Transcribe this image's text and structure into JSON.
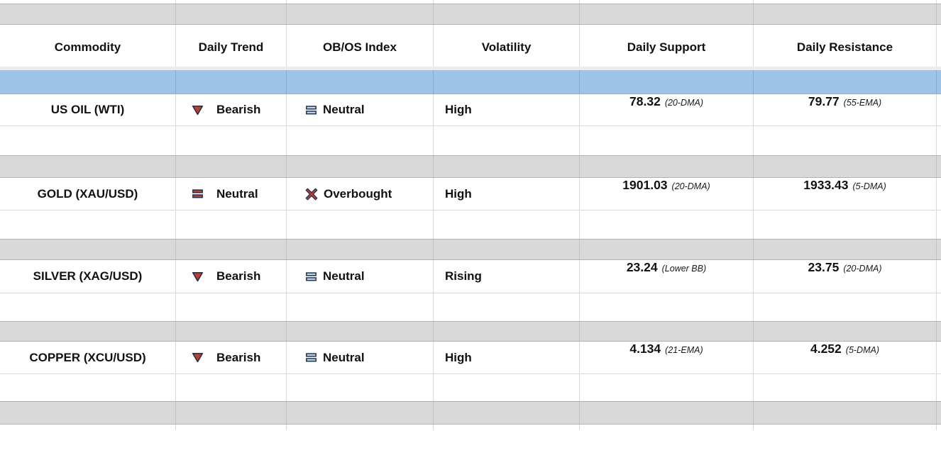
{
  "colors": {
    "band-gray": "#d9d9d9",
    "band-blue": "#9dc3e6",
    "grid-line": "#d9d9d9",
    "icon-red": "#c13e2c",
    "icon-lightblue": "#bdd7ee",
    "icon-outline": "#1f3050"
  },
  "table": {
    "columns": [
      {
        "label": "Commodity"
      },
      {
        "label": "Daily Trend"
      },
      {
        "label": "OB/OS Index"
      },
      {
        "label": "Volatility"
      },
      {
        "label": "Daily Support"
      },
      {
        "label": "Daily Resistance"
      }
    ],
    "rows": [
      {
        "commodity": "US OIL (WTI)",
        "daily_trend": {
          "label": "Bearish",
          "icon": "triangle-down",
          "icon_fill": "#c13e2c"
        },
        "obos_index": {
          "label": "Neutral",
          "icon": "double-bars",
          "icon_fill": "#bdd7ee"
        },
        "volatility": "High",
        "daily_support": {
          "value": "78.32",
          "basis": "(20-DMA)"
        },
        "daily_resistance": {
          "value": "79.77",
          "basis": "(55-EMA)"
        }
      },
      {
        "commodity": "GOLD (XAU/USD)",
        "daily_trend": {
          "label": "Neutral",
          "icon": "double-bars",
          "icon_fill": "#c13e2c"
        },
        "obos_index": {
          "label": "Overbought",
          "icon": "cross-x",
          "icon_fill": "#c13e2c"
        },
        "volatility": "High",
        "daily_support": {
          "value": "1901.03",
          "basis": "(20-DMA)"
        },
        "daily_resistance": {
          "value": "1933.43",
          "basis": "(5-DMA)"
        }
      },
      {
        "commodity": "SILVER (XAG/USD)",
        "daily_trend": {
          "label": "Bearish",
          "icon": "triangle-down",
          "icon_fill": "#c13e2c"
        },
        "obos_index": {
          "label": "Neutral",
          "icon": "double-bars",
          "icon_fill": "#bdd7ee"
        },
        "volatility": "Rising",
        "daily_support": {
          "value": "23.24",
          "basis": "(Lower BB)"
        },
        "daily_resistance": {
          "value": "23.75",
          "basis": "(20-DMA)"
        }
      },
      {
        "commodity": "COPPER (XCU/USD)",
        "daily_trend": {
          "label": "Bearish",
          "icon": "triangle-down",
          "icon_fill": "#c13e2c"
        },
        "obos_index": {
          "label": "Neutral",
          "icon": "double-bars",
          "icon_fill": "#bdd7ee"
        },
        "volatility": "High",
        "daily_support": {
          "value": "4.134",
          "basis": "(21-EMA)"
        },
        "daily_resistance": {
          "value": "4.252",
          "basis": "(5-DMA)"
        }
      }
    ]
  }
}
